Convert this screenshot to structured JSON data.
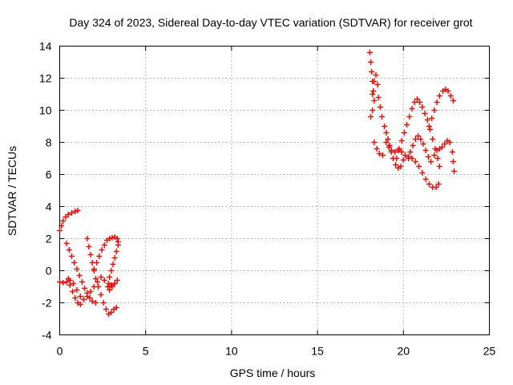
{
  "chart_data": {
    "type": "scatter",
    "title": "Day 324 of 2023, Sidereal Day-to-day VTEC variation (SDTVAR) for receiver grot",
    "xlabel": "GPS time / hours",
    "ylabel": "SDTVAR / TECUs",
    "xlim": [
      0,
      25
    ],
    "ylim": [
      -4,
      14
    ],
    "xticks": [
      "0",
      "5",
      "10",
      "15",
      "20",
      "25"
    ],
    "yticks": [
      "-4",
      "-2",
      "0",
      "2",
      "4",
      "6",
      "8",
      "10",
      "12",
      "14"
    ],
    "grid": true,
    "marker": "+",
    "series_color": "#ff0000",
    "series": [
      {
        "name": "SDTVAR",
        "points": [
          [
            0.0,
            2.5
          ],
          [
            0.1,
            2.8
          ],
          [
            0.2,
            3.1
          ],
          [
            0.35,
            3.35
          ],
          [
            0.5,
            3.5
          ],
          [
            0.7,
            3.6
          ],
          [
            0.9,
            3.7
          ],
          [
            1.05,
            3.75
          ],
          [
            0.0,
            -0.7
          ],
          [
            0.2,
            -0.75
          ],
          [
            0.4,
            -0.7
          ],
          [
            0.6,
            -0.6
          ],
          [
            0.8,
            -0.8
          ],
          [
            1.0,
            -1.2
          ],
          [
            1.2,
            -1.6
          ],
          [
            1.4,
            -1.8
          ],
          [
            1.6,
            -1.6
          ],
          [
            1.8,
            -1.3
          ],
          [
            2.0,
            -1.0
          ],
          [
            2.2,
            -0.7
          ],
          [
            2.4,
            -0.4
          ],
          [
            2.6,
            -0.6
          ],
          [
            2.8,
            -1.0
          ],
          [
            3.0,
            -0.9
          ],
          [
            3.2,
            -0.8
          ],
          [
            0.4,
            1.7
          ],
          [
            0.55,
            1.3
          ],
          [
            0.7,
            0.9
          ],
          [
            0.85,
            0.5
          ],
          [
            1.0,
            0.1
          ],
          [
            1.15,
            -0.3
          ],
          [
            1.3,
            -0.7
          ],
          [
            1.45,
            -1.1
          ],
          [
            1.6,
            -1.4
          ],
          [
            1.75,
            -1.7
          ],
          [
            1.9,
            -1.9
          ],
          [
            2.1,
            -2.0
          ],
          [
            0.5,
            -0.5
          ],
          [
            0.6,
            -0.9
          ],
          [
            0.75,
            -1.3
          ],
          [
            0.9,
            -1.7
          ],
          [
            1.05,
            -2.0
          ],
          [
            1.2,
            -2.1
          ],
          [
            1.6,
            2.0
          ],
          [
            1.7,
            1.5
          ],
          [
            1.8,
            1.0
          ],
          [
            1.9,
            0.5
          ],
          [
            2.0,
            0.0
          ],
          [
            2.1,
            -0.5
          ],
          [
            2.25,
            -1.0
          ],
          [
            2.4,
            -1.5
          ],
          [
            2.55,
            -2.0
          ],
          [
            2.7,
            -2.4
          ],
          [
            2.85,
            -2.7
          ],
          [
            3.0,
            -2.6
          ],
          [
            3.15,
            -2.4
          ],
          [
            3.3,
            -2.3
          ],
          [
            2.0,
            0.1
          ],
          [
            2.15,
            0.5
          ],
          [
            2.3,
            0.9
          ],
          [
            2.45,
            1.3
          ],
          [
            2.6,
            1.6
          ],
          [
            2.75,
            1.9
          ],
          [
            2.9,
            2.0
          ],
          [
            3.05,
            2.05
          ],
          [
            3.2,
            2.1
          ],
          [
            3.35,
            2.0
          ],
          [
            3.4,
            1.8
          ],
          [
            3.4,
            1.6
          ],
          [
            3.3,
            1.2
          ],
          [
            3.2,
            0.8
          ],
          [
            3.1,
            0.4
          ],
          [
            3.0,
            0.0
          ],
          [
            2.9,
            -0.4
          ],
          [
            2.85,
            -0.8
          ],
          [
            2.9,
            -1.2
          ],
          [
            3.05,
            -1.0
          ],
          [
            3.2,
            -0.8
          ],
          [
            3.35,
            -0.6
          ],
          [
            18.05,
            13.6
          ],
          [
            18.1,
            13.0
          ],
          [
            18.15,
            12.4
          ],
          [
            18.2,
            11.8
          ],
          [
            18.25,
            11.2
          ],
          [
            18.3,
            10.6
          ],
          [
            18.2,
            10.0
          ],
          [
            18.1,
            9.6
          ],
          [
            18.2,
            11.0
          ],
          [
            18.3,
            11.8
          ],
          [
            18.4,
            12.2
          ],
          [
            18.5,
            11.6
          ],
          [
            18.55,
            10.8
          ],
          [
            18.65,
            10.2
          ],
          [
            18.75,
            9.6
          ],
          [
            18.3,
            8.0
          ],
          [
            18.45,
            7.6
          ],
          [
            18.6,
            7.3
          ],
          [
            18.8,
            7.2
          ],
          [
            18.9,
            9.0
          ],
          [
            19.0,
            8.6
          ],
          [
            19.1,
            8.2
          ],
          [
            19.2,
            7.8
          ],
          [
            19.3,
            7.4
          ],
          [
            19.4,
            7.0
          ],
          [
            19.55,
            6.6
          ],
          [
            19.7,
            6.4
          ],
          [
            19.85,
            6.5
          ],
          [
            20.0,
            6.9
          ],
          [
            19.0,
            8.0
          ],
          [
            19.15,
            7.7
          ],
          [
            19.3,
            7.5
          ],
          [
            19.5,
            7.4
          ],
          [
            19.7,
            7.5
          ],
          [
            19.9,
            7.4
          ],
          [
            20.1,
            7.2
          ],
          [
            20.3,
            7.1
          ],
          [
            20.5,
            7.0
          ],
          [
            20.7,
            6.8
          ],
          [
            20.9,
            6.5
          ],
          [
            21.1,
            6.1
          ],
          [
            21.3,
            5.7
          ],
          [
            21.5,
            5.4
          ],
          [
            21.7,
            5.2
          ],
          [
            21.9,
            5.2
          ],
          [
            22.05,
            5.4
          ],
          [
            19.6,
            7.0
          ],
          [
            19.75,
            7.6
          ],
          [
            19.9,
            8.1
          ],
          [
            20.05,
            8.6
          ],
          [
            20.2,
            9.1
          ],
          [
            20.35,
            9.6
          ],
          [
            20.5,
            10.1
          ],
          [
            20.65,
            10.5
          ],
          [
            20.8,
            10.7
          ],
          [
            20.95,
            10.5
          ],
          [
            21.1,
            10.2
          ],
          [
            21.25,
            9.8
          ],
          [
            21.4,
            9.4
          ],
          [
            21.55,
            8.8
          ],
          [
            21.7,
            8.2
          ],
          [
            21.85,
            7.6
          ],
          [
            22.0,
            7.0
          ],
          [
            22.1,
            6.5
          ],
          [
            20.3,
            7.0
          ],
          [
            20.4,
            7.4
          ],
          [
            20.55,
            7.8
          ],
          [
            20.7,
            8.2
          ],
          [
            20.85,
            8.4
          ],
          [
            21.0,
            8.2
          ],
          [
            21.15,
            7.9
          ],
          [
            21.3,
            7.5
          ],
          [
            21.45,
            7.1
          ],
          [
            21.6,
            6.8
          ],
          [
            21.5,
            9.0
          ],
          [
            21.65,
            9.5
          ],
          [
            21.8,
            10.0
          ],
          [
            21.95,
            10.5
          ],
          [
            22.1,
            10.9
          ],
          [
            22.3,
            11.2
          ],
          [
            22.45,
            11.3
          ],
          [
            22.6,
            11.2
          ],
          [
            22.75,
            10.9
          ],
          [
            22.9,
            10.6
          ],
          [
            21.8,
            7.2
          ],
          [
            21.95,
            7.5
          ],
          [
            22.1,
            7.6
          ],
          [
            22.25,
            7.7
          ],
          [
            22.4,
            7.9
          ],
          [
            22.55,
            8.1
          ],
          [
            22.7,
            8.0
          ],
          [
            22.85,
            7.4
          ],
          [
            22.9,
            6.8
          ],
          [
            22.95,
            6.2
          ]
        ]
      }
    ]
  }
}
